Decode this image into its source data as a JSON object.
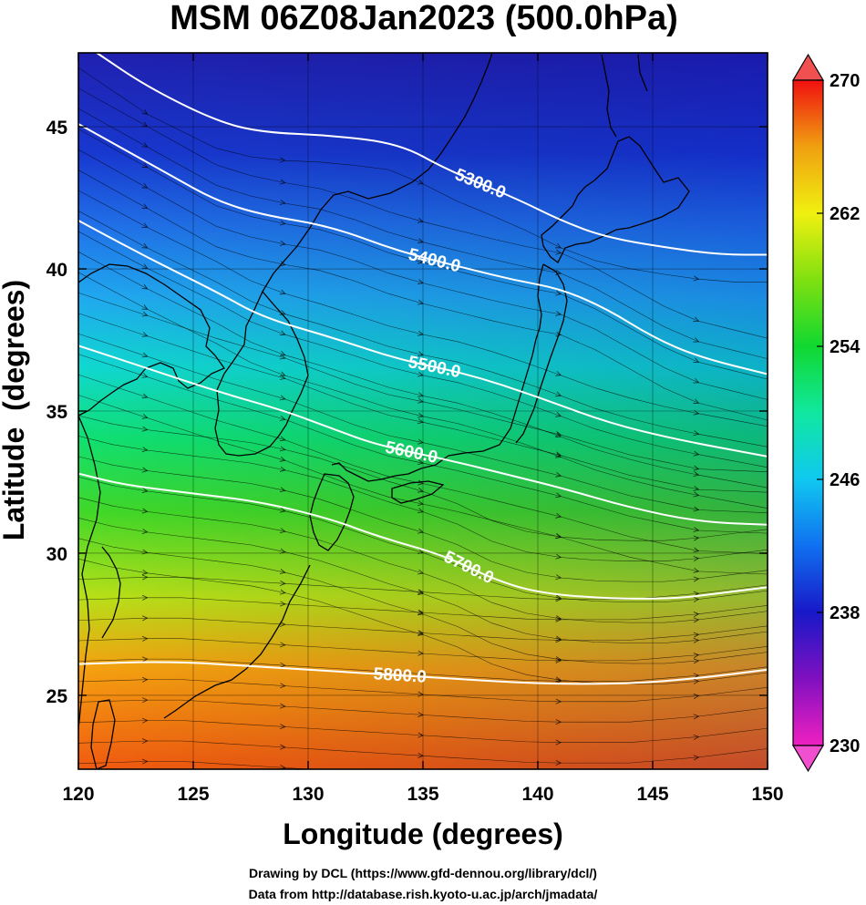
{
  "chart_data": {
    "type": "heatmap",
    "title": "MSM 06Z08Jan2023 (500.0hPa)",
    "xlabel": "Longitude (degrees)",
    "ylabel": "Latitude  (degrees)",
    "xlim": [
      120,
      150
    ],
    "ylim": [
      22.4,
      47.6
    ],
    "xticks": [
      "120",
      "125",
      "130",
      "135",
      "140",
      "145",
      "150"
    ],
    "yticks": [
      "25",
      "30",
      "35",
      "40",
      "45"
    ],
    "colorbar": {
      "range": [
        230,
        270
      ],
      "ticks": [
        "230",
        "238",
        "246",
        "254",
        "262",
        "270"
      ],
      "colors": [
        "#f020c0",
        "#8010c0",
        "#1818c8",
        "#1070f0",
        "#10c8f0",
        "#10e8a0",
        "#10d830",
        "#80e010",
        "#f0f010",
        "#f0a010",
        "#f05010",
        "#f01010"
      ]
    },
    "contours": [
      {
        "label": "5300.0",
        "points": [
          [
            120.8,
            47.6
          ],
          [
            123,
            46.4
          ],
          [
            126,
            45.2
          ],
          [
            128,
            44.8
          ],
          [
            131,
            44.7
          ],
          [
            134,
            44.4
          ],
          [
            136,
            43.5
          ],
          [
            139,
            42.5
          ],
          [
            141,
            41.7
          ],
          [
            143,
            41.1
          ],
          [
            146,
            40.7
          ],
          [
            148,
            40.5
          ],
          [
            150,
            40.5
          ]
        ]
      },
      {
        "label": "5400.0",
        "points": [
          [
            120,
            45.1
          ],
          [
            122,
            44.2
          ],
          [
            124,
            43.3
          ],
          [
            126,
            42.4
          ],
          [
            128,
            41.9
          ],
          [
            131,
            41.5
          ],
          [
            134,
            40.6
          ],
          [
            137,
            40
          ],
          [
            139,
            39.6
          ],
          [
            141,
            39.3
          ],
          [
            143,
            38.6
          ],
          [
            145,
            37.6
          ],
          [
            147,
            36.9
          ],
          [
            150,
            36.3
          ]
        ]
      },
      {
        "label": "5500.0",
        "points": [
          [
            120,
            41.7
          ],
          [
            123,
            40.4
          ],
          [
            126,
            39.2
          ],
          [
            128,
            38.3
          ],
          [
            131,
            37.6
          ],
          [
            134,
            36.8
          ],
          [
            137,
            36.3
          ],
          [
            140,
            35.5
          ],
          [
            143,
            34.6
          ],
          [
            146,
            34
          ],
          [
            150,
            33.4
          ]
        ]
      },
      {
        "label": "5600.0",
        "points": [
          [
            120,
            37.3
          ],
          [
            123,
            36.5
          ],
          [
            126,
            35.7
          ],
          [
            129,
            35
          ],
          [
            131,
            34.4
          ],
          [
            133,
            33.8
          ],
          [
            136,
            33.3
          ],
          [
            139,
            32.7
          ],
          [
            141,
            32.3
          ],
          [
            144,
            31.6
          ],
          [
            147,
            31.1
          ],
          [
            150,
            31
          ]
        ]
      },
      {
        "label": "5700.0",
        "points": [
          [
            120,
            32.8
          ],
          [
            122,
            32.4
          ],
          [
            125,
            32.1
          ],
          [
            128,
            31.8
          ],
          [
            131,
            31.2
          ],
          [
            133,
            30.6
          ],
          [
            136,
            29.9
          ],
          [
            138,
            29.1
          ],
          [
            140,
            28.6
          ],
          [
            143,
            28.4
          ],
          [
            146,
            28.4
          ],
          [
            148,
            28.6
          ],
          [
            150,
            28.8
          ]
        ]
      },
      {
        "label": "5800.0",
        "points": [
          [
            120,
            26.1
          ],
          [
            124,
            26.2
          ],
          [
            128,
            26
          ],
          [
            132,
            25.8
          ],
          [
            136,
            25.6
          ],
          [
            140,
            25.4
          ],
          [
            144,
            25.4
          ],
          [
            147,
            25.6
          ],
          [
            150,
            25.9
          ]
        ]
      }
    ]
  },
  "credits": {
    "line1": "Drawing by DCL (https://www.gfd-dennou.org/library/dcl/)",
    "line2": "Data from http://database.rish.kyoto-u.ac.jp/arch/jmadata/"
  }
}
